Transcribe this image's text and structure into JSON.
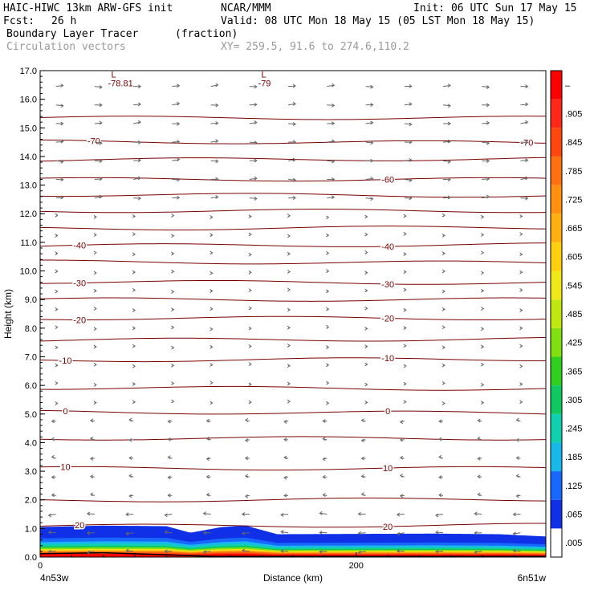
{
  "header": {
    "model": "HAIC-HIWC 13km ARW-GFS init",
    "org": "NCAR/MMM",
    "init": "Init: 06 UTC Sun 17 May 15",
    "fcst_label": "Fcst:",
    "fcst_value": "26 h",
    "valid": "Valid: 08 UTC Mon 18 May 15 (05 LST Mon 18 May 15)",
    "field": "Boundary Layer Tracer",
    "field_units": "(fraction)",
    "overlay": "Circulation vectors",
    "xy": "XY= 259.5, 91.6 to 274.6,110.2"
  },
  "chart_data": {
    "type": "contour cross-section",
    "xlabel": "Distance (km)",
    "ylabel": "Height (km)",
    "x_ticks": [
      "0",
      "200"
    ],
    "x_endpoints": [
      "4n53w",
      "6n51w"
    ],
    "xlim": [
      0,
      320
    ],
    "y_ticks": [
      "0.0",
      "1.0",
      "2.0",
      "3.0",
      "4.0",
      "5.0",
      "6.0",
      "7.0",
      "8.0",
      "9.0",
      "10.0",
      "11.0",
      "12.0",
      "13.0",
      "14.0",
      "15.0",
      "16.0",
      "17.0"
    ],
    "ylim": [
      0,
      17
    ],
    "grid": false,
    "colorbar": {
      "labels": [
        ".005",
        ".065",
        ".125",
        ".185",
        ".245",
        ".305",
        ".365",
        ".425",
        ".485",
        ".545",
        ".605",
        ".665",
        ".725",
        ".785",
        ".845",
        ".905",
        "–"
      ],
      "colors": [
        "#ffffff",
        "#1030e8",
        "#1868ff",
        "#18b8e8",
        "#10d0b0",
        "#10c860",
        "#30d020",
        "#80e010",
        "#c0e810",
        "#f0e818",
        "#ffd010",
        "#ffb010",
        "#ff9010",
        "#ff7010",
        "#ff4810",
        "#ff2818",
        "#ff0000"
      ]
    },
    "tracer_top_km": [
      {
        "x": 0,
        "top": 1.05
      },
      {
        "x": 40,
        "top": 1.1
      },
      {
        "x": 80,
        "top": 1.08
      },
      {
        "x": 95,
        "top": 0.85
      },
      {
        "x": 115,
        "top": 1.05
      },
      {
        "x": 130,
        "top": 1.1
      },
      {
        "x": 150,
        "top": 0.8
      },
      {
        "x": 250,
        "top": 0.82
      },
      {
        "x": 290,
        "top": 0.8
      },
      {
        "x": 320,
        "top": 0.72
      }
    ],
    "temperature_contours": [
      {
        "label": "20",
        "height_km": 1.1,
        "label_positions_km": [
          25,
          220
        ]
      },
      {
        "label": "10",
        "height_km": 3.1,
        "label_positions_km": [
          16,
          220
        ]
      },
      {
        "label": "0",
        "height_km": 5.05,
        "label_positions_km": [
          16,
          220
        ]
      },
      {
        "label": "-10",
        "height_km": 6.9,
        "label_positions_km": [
          16,
          220
        ]
      },
      {
        "label": "-20",
        "height_km": 8.35,
        "label_positions_km": [
          25,
          220
        ]
      },
      {
        "label": "-30",
        "height_km": 9.6,
        "label_positions_km": [
          25,
          220
        ]
      },
      {
        "label": "-40",
        "height_km": 10.9,
        "label_positions_km": [
          25,
          220
        ]
      },
      {
        "label": "-60",
        "height_km": 13.2,
        "label_positions_km": [
          220
        ]
      },
      {
        "label": "-70",
        "height_km": 14.5,
        "label_positions_km": [
          34,
          308
        ]
      }
    ],
    "unlabeled_contour_heights_km": [
      2.0,
      4.15,
      5.9,
      7.6,
      9.0,
      10.3,
      11.5,
      12.1,
      12.65,
      13.9,
      15.35
    ],
    "lows": [
      {
        "label": "L",
        "value": "-78.81",
        "x_km": 48,
        "y_km": 16.7
      },
      {
        "label": "L",
        "value": "-79",
        "x_km": 143,
        "y_km": 16.7
      }
    ]
  }
}
